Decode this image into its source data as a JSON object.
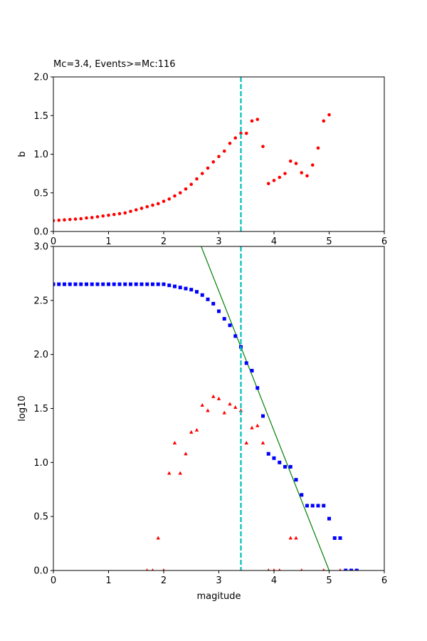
{
  "chart_data": [
    {
      "type": "scatter",
      "title": "Mc=3.4, Events>=Mc:116",
      "xlabel": "",
      "ylabel": "b",
      "xlim": [
        0,
        6
      ],
      "ylim": [
        0,
        2.0
      ],
      "xticks": [
        0,
        1,
        2,
        3,
        4,
        5,
        6
      ],
      "yticks": [
        0.0,
        0.5,
        1.0,
        1.5,
        2.0
      ],
      "xtick_labels": [
        "0",
        "1",
        "2",
        "3",
        "4",
        "5",
        "6"
      ],
      "ytick_labels": [
        "0.0",
        "0.5",
        "1.0",
        "1.5",
        "2.0"
      ],
      "grid": false,
      "vline": {
        "x": 3.4,
        "color": "#00bfbf",
        "style": "dashed"
      },
      "series": [
        {
          "marker": "circle",
          "color": "#ff0000",
          "x": [
            0.0,
            0.1,
            0.2,
            0.3,
            0.4,
            0.5,
            0.6,
            0.7,
            0.8,
            0.9,
            1.0,
            1.1,
            1.2,
            1.3,
            1.4,
            1.5,
            1.6,
            1.7,
            1.8,
            1.9,
            2.0,
            2.1,
            2.2,
            2.3,
            2.4,
            2.5,
            2.6,
            2.7,
            2.8,
            2.9,
            3.0,
            3.1,
            3.2,
            3.3,
            3.4,
            3.5,
            3.6,
            3.7,
            3.8,
            3.9,
            4.0,
            4.1,
            4.2,
            4.3,
            4.4,
            4.5,
            4.6,
            4.7,
            4.8,
            4.9,
            5.0
          ],
          "y": [
            0.14,
            0.145,
            0.15,
            0.155,
            0.16,
            0.165,
            0.175,
            0.18,
            0.19,
            0.2,
            0.21,
            0.22,
            0.23,
            0.24,
            0.26,
            0.28,
            0.3,
            0.32,
            0.34,
            0.36,
            0.39,
            0.42,
            0.46,
            0.5,
            0.55,
            0.61,
            0.68,
            0.75,
            0.82,
            0.9,
            0.97,
            1.04,
            1.14,
            1.21,
            1.27,
            1.27,
            1.43,
            1.45,
            1.1,
            0.62,
            0.66,
            0.7,
            0.75,
            0.91,
            0.88,
            0.76,
            0.72,
            0.86,
            1.08,
            1.43,
            1.51
          ]
        }
      ]
    },
    {
      "type": "scatter",
      "title": "",
      "xlabel": "magitude",
      "ylabel": "log10",
      "xlim": [
        0,
        6
      ],
      "ylim": [
        0,
        3.0
      ],
      "xticks": [
        0,
        1,
        2,
        3,
        4,
        5,
        6
      ],
      "yticks": [
        0.0,
        0.5,
        1.0,
        1.5,
        2.0,
        2.5,
        3.0
      ],
      "xtick_labels": [
        "0",
        "1",
        "2",
        "3",
        "4",
        "5",
        "6"
      ],
      "ytick_labels": [
        "0.0",
        "0.5",
        "1.0",
        "1.5",
        "2.0",
        "2.5",
        "3.0"
      ],
      "grid": false,
      "vline": {
        "x": 3.4,
        "color": "#00bfbf",
        "style": "dashed"
      },
      "fit_line": {
        "x": [
          2.68,
          5.0
        ],
        "y": [
          3.0,
          0.0
        ],
        "color": "#008000"
      },
      "series": [
        {
          "marker": "square",
          "color": "#0000ff",
          "x": [
            0.0,
            0.1,
            0.2,
            0.3,
            0.4,
            0.5,
            0.6,
            0.7,
            0.8,
            0.9,
            1.0,
            1.1,
            1.2,
            1.3,
            1.4,
            1.5,
            1.6,
            1.7,
            1.8,
            1.9,
            2.0,
            2.1,
            2.2,
            2.3,
            2.4,
            2.5,
            2.6,
            2.7,
            2.8,
            2.9,
            3.0,
            3.1,
            3.2,
            3.3,
            3.4,
            3.5,
            3.6,
            3.7,
            3.8,
            3.9,
            4.0,
            4.1,
            4.2,
            4.3,
            4.4,
            4.5,
            4.6,
            4.7,
            4.8,
            4.9,
            5.0,
            5.1,
            5.2,
            5.3,
            5.4,
            5.5
          ],
          "y": [
            2.65,
            2.65,
            2.65,
            2.65,
            2.65,
            2.65,
            2.65,
            2.65,
            2.65,
            2.65,
            2.65,
            2.65,
            2.65,
            2.65,
            2.65,
            2.65,
            2.65,
            2.65,
            2.65,
            2.65,
            2.65,
            2.64,
            2.63,
            2.62,
            2.61,
            2.6,
            2.58,
            2.55,
            2.51,
            2.47,
            2.4,
            2.33,
            2.27,
            2.17,
            2.07,
            1.92,
            1.85,
            1.69,
            1.43,
            1.08,
            1.04,
            1.0,
            0.96,
            0.96,
            0.84,
            0.7,
            0.6,
            0.6,
            0.6,
            0.6,
            0.48,
            0.3,
            0.3,
            0.0,
            0.0,
            0.0
          ]
        },
        {
          "marker": "triangle",
          "color": "#ff0000",
          "x": [
            1.7,
            1.8,
            1.9,
            2.0,
            2.1,
            2.2,
            2.3,
            2.4,
            2.5,
            2.6,
            2.7,
            2.8,
            2.9,
            3.0,
            3.1,
            3.2,
            3.3,
            3.4,
            3.5,
            3.6,
            3.7,
            3.8,
            3.9,
            4.0,
            4.1,
            4.3,
            4.4,
            4.5,
            4.9,
            5.2
          ],
          "y": [
            0.0,
            0.0,
            0.3,
            0.0,
            0.9,
            1.18,
            0.9,
            1.08,
            1.28,
            1.3,
            1.53,
            1.48,
            1.61,
            1.59,
            1.46,
            1.54,
            1.51,
            1.48,
            1.18,
            1.32,
            1.34,
            1.18,
            0.0,
            0.0,
            0.0,
            0.3,
            0.3,
            0.0,
            0.0,
            0.0
          ]
        }
      ]
    }
  ]
}
